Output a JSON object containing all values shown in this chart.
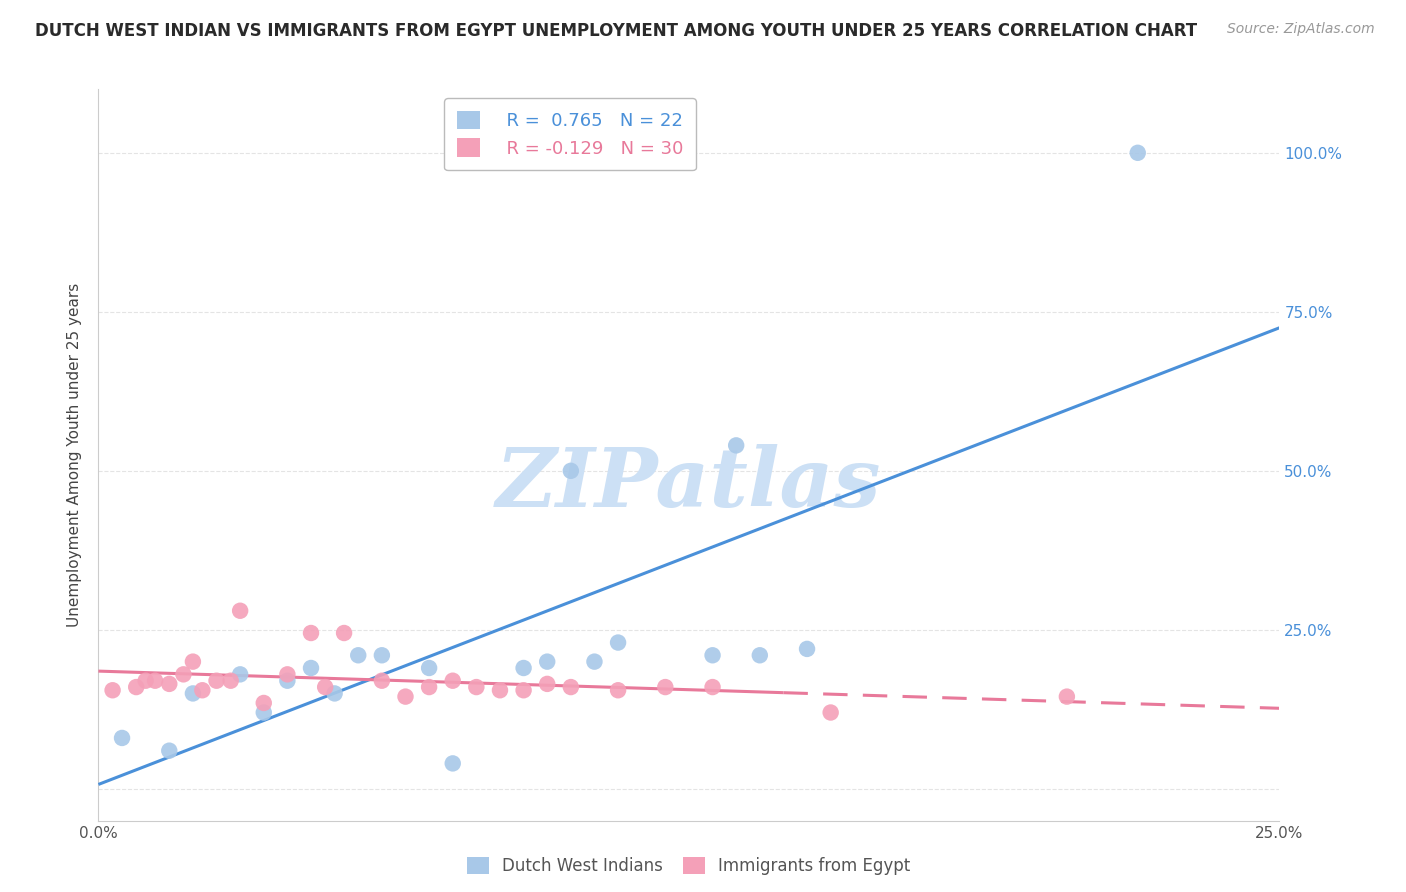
{
  "title": "DUTCH WEST INDIAN VS IMMIGRANTS FROM EGYPT UNEMPLOYMENT AMONG YOUTH UNDER 25 YEARS CORRELATION CHART",
  "source": "Source: ZipAtlas.com",
  "ylabel": "Unemployment Among Youth under 25 years",
  "xlim": [
    0.0,
    0.25
  ],
  "ylim": [
    -0.05,
    1.1
  ],
  "series1_label": "Dutch West Indians",
  "series1_color": "#a8c8e8",
  "series1_R": "0.765",
  "series1_N": "22",
  "series2_label": "Immigrants from Egypt",
  "series2_color": "#f4a0b8",
  "series2_R": "-0.129",
  "series2_N": "30",
  "watermark": "ZIPatlas",
  "watermark_color": "#cce0f5",
  "series1_x": [
    0.005,
    0.015,
    0.02,
    0.03,
    0.035,
    0.04,
    0.045,
    0.05,
    0.055,
    0.06,
    0.07,
    0.075,
    0.09,
    0.095,
    0.1,
    0.105,
    0.11,
    0.13,
    0.135,
    0.14,
    0.15,
    0.22
  ],
  "series1_y": [
    0.08,
    0.06,
    0.15,
    0.18,
    0.12,
    0.17,
    0.19,
    0.15,
    0.21,
    0.21,
    0.19,
    0.04,
    0.19,
    0.2,
    0.5,
    0.2,
    0.23,
    0.21,
    0.54,
    0.21,
    0.22,
    1.0
  ],
  "series2_x": [
    0.003,
    0.008,
    0.01,
    0.012,
    0.015,
    0.018,
    0.02,
    0.022,
    0.025,
    0.028,
    0.03,
    0.035,
    0.04,
    0.045,
    0.048,
    0.052,
    0.06,
    0.065,
    0.07,
    0.075,
    0.08,
    0.085,
    0.09,
    0.095,
    0.1,
    0.11,
    0.12,
    0.13,
    0.155,
    0.205
  ],
  "series2_y": [
    0.155,
    0.16,
    0.17,
    0.17,
    0.165,
    0.18,
    0.2,
    0.155,
    0.17,
    0.17,
    0.28,
    0.135,
    0.18,
    0.245,
    0.16,
    0.245,
    0.17,
    0.145,
    0.16,
    0.17,
    0.16,
    0.155,
    0.155,
    0.165,
    0.16,
    0.155,
    0.16,
    0.16,
    0.12,
    0.145
  ],
  "line1_color": "#4a90d9",
  "line2_color": "#e8799a",
  "line2_solid_end": 0.145,
  "line2_dashed_start": 0.145,
  "grid_color": "#e4e4e4",
  "grid_linestyle": "--",
  "background_color": "#ffffff",
  "title_fontsize": 12,
  "source_fontsize": 10,
  "axis_label_fontsize": 11,
  "tick_fontsize": 11,
  "legend_fontsize": 13
}
